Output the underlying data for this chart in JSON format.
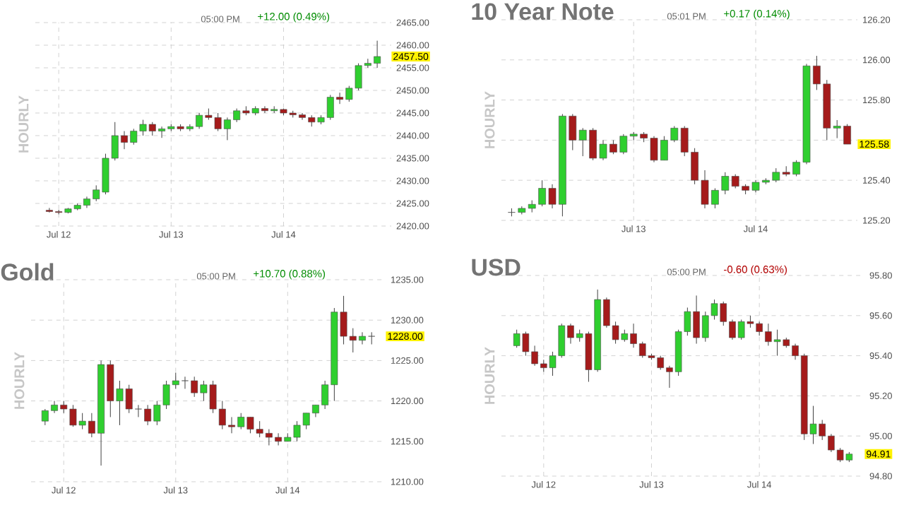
{
  "chart_data": [
    {
      "type": "candlestick",
      "ylabel": "HOURLY",
      "grid": true,
      "annotations": [
        "05:00 PM",
        "+12.00 (0.49%)",
        "2457.50"
      ],
      "ylim": [
        2420,
        2465
      ],
      "categories": [
        null,
        "Jul 12",
        null,
        null,
        null,
        null,
        null,
        null,
        null,
        null,
        null,
        null,
        null,
        "Jul 13",
        null,
        null,
        null,
        null,
        null,
        null,
        null,
        null,
        null,
        null,
        null,
        "Jul 14",
        null,
        null,
        null,
        null,
        null,
        null,
        null,
        null,
        null,
        null
      ],
      "yticks": [
        {
          "value": 2420,
          "label": "2420.00"
        },
        {
          "value": 2425,
          "label": "2425.00"
        },
        {
          "value": 2430,
          "label": "2430.00"
        },
        {
          "value": 2435,
          "label": "2435.00"
        },
        {
          "value": 2440,
          "label": "2440.00"
        },
        {
          "value": 2445,
          "label": "2445.00"
        },
        {
          "value": 2450,
          "label": "2450.00"
        },
        {
          "value": 2455,
          "label": "2455.00"
        },
        {
          "value": 2460,
          "label": "2460.00"
        },
        {
          "value": 2465,
          "label": "2465.00"
        }
      ],
      "ohlc": [
        [
          2423.5,
          2424,
          2423,
          2423.2
        ],
        [
          2423.2,
          2423.6,
          2422.6,
          2423
        ],
        [
          2423,
          2424,
          2422.8,
          2423.8
        ],
        [
          2423.8,
          2425,
          2423.5,
          2424.6
        ],
        [
          2424.6,
          2426.5,
          2424,
          2426
        ],
        [
          2426,
          2429,
          2425.5,
          2428
        ],
        [
          2427.5,
          2436,
          2427,
          2435
        ],
        [
          2435,
          2443,
          2434.5,
          2440
        ],
        [
          2440,
          2441,
          2437,
          2438.5
        ],
        [
          2438.5,
          2441.5,
          2438,
          2441
        ],
        [
          2441,
          2443.5,
          2440,
          2442.5
        ],
        [
          2442.5,
          2443,
          2440,
          2441
        ],
        [
          2441,
          2442,
          2439.5,
          2441.5
        ],
        [
          2441.5,
          2442.5,
          2441,
          2442
        ],
        [
          2442,
          2442.5,
          2441,
          2441.5
        ],
        [
          2441.5,
          2442.5,
          2441,
          2442
        ],
        [
          2442,
          2445,
          2441.5,
          2444.5
        ],
        [
          2444.5,
          2446,
          2443.5,
          2444
        ],
        [
          2444,
          2445,
          2441,
          2441.5
        ],
        [
          2441.5,
          2444,
          2439,
          2443.5
        ],
        [
          2443.5,
          2446,
          2443,
          2445.5
        ],
        [
          2445.5,
          2446.5,
          2444.5,
          2445
        ],
        [
          2445,
          2446.5,
          2444.5,
          2446
        ],
        [
          2446,
          2446.5,
          2445,
          2445.5
        ],
        [
          2445.5,
          2446.5,
          2445,
          2445.8
        ],
        [
          2445.8,
          2446,
          2444.5,
          2445
        ],
        [
          2445,
          2445.5,
          2444,
          2444.6
        ],
        [
          2444.6,
          2445,
          2443.5,
          2444
        ],
        [
          2444,
          2444.5,
          2442,
          2443
        ],
        [
          2443,
          2444.5,
          2442.5,
          2444
        ],
        [
          2444,
          2449,
          2443.5,
          2448.5
        ],
        [
          2448.5,
          2449.5,
          2447,
          2448
        ],
        [
          2448,
          2451,
          2447.5,
          2450.5
        ],
        [
          2450.5,
          2456,
          2450,
          2455.5
        ],
        [
          2455.5,
          2457,
          2455,
          2456
        ],
        [
          2456,
          2461,
          2455,
          2457.5
        ]
      ]
    },
    {
      "type": "candlestick",
      "title": "10 Year Note",
      "ylabel": "HOURLY",
      "grid": true,
      "annotations": [
        "05:01 PM",
        "+0.17 (0.14%)",
        "125.58"
      ],
      "ylim": [
        125.2,
        126.2
      ],
      "categories": [
        null,
        null,
        null,
        null,
        null,
        null,
        null,
        null,
        null,
        null,
        null,
        null,
        "Jul 13",
        null,
        null,
        null,
        null,
        null,
        null,
        null,
        null,
        null,
        null,
        null,
        "Jul 14",
        null,
        null,
        null,
        null,
        null,
        null,
        null,
        null,
        null
      ],
      "yticks": [
        {
          "value": 125.2,
          "label": "125.20"
        },
        {
          "value": 125.4,
          "label": "125.40"
        },
        {
          "value": 125.6,
          "label": null
        },
        {
          "value": 125.8,
          "label": "125.80"
        },
        {
          "value": 126.0,
          "label": "126.00"
        },
        {
          "value": 126.2,
          "label": "126.20"
        }
      ],
      "ohlc": [
        [
          125.24,
          125.26,
          125.22,
          125.24
        ],
        [
          125.24,
          125.27,
          125.23,
          125.26
        ],
        [
          125.26,
          125.3,
          125.24,
          125.28
        ],
        [
          125.28,
          125.4,
          125.27,
          125.36
        ],
        [
          125.36,
          125.38,
          125.26,
          125.28
        ],
        [
          125.28,
          125.73,
          125.22,
          125.72
        ],
        [
          125.72,
          125.73,
          125.55,
          125.6
        ],
        [
          125.6,
          125.66,
          125.52,
          125.65
        ],
        [
          125.65,
          125.66,
          125.5,
          125.51
        ],
        [
          125.51,
          125.6,
          125.5,
          125.58
        ],
        [
          125.58,
          125.6,
          125.53,
          125.54
        ],
        [
          125.54,
          125.63,
          125.53,
          125.62
        ],
        [
          125.62,
          125.64,
          125.6,
          125.63
        ],
        [
          125.63,
          125.64,
          125.59,
          125.61
        ],
        [
          125.61,
          125.62,
          125.49,
          125.5
        ],
        [
          125.5,
          125.62,
          125.5,
          125.6
        ],
        [
          125.6,
          125.67,
          125.59,
          125.66
        ],
        [
          125.66,
          125.67,
          125.52,
          125.54
        ],
        [
          125.54,
          125.56,
          125.38,
          125.4
        ],
        [
          125.4,
          125.45,
          125.26,
          125.28
        ],
        [
          125.28,
          125.36,
          125.26,
          125.35
        ],
        [
          125.35,
          125.44,
          125.33,
          125.42
        ],
        [
          125.42,
          125.43,
          125.36,
          125.37
        ],
        [
          125.37,
          125.38,
          125.33,
          125.35
        ],
        [
          125.35,
          125.4,
          125.34,
          125.39
        ],
        [
          125.39,
          125.41,
          125.38,
          125.4
        ],
        [
          125.4,
          125.46,
          125.39,
          125.44
        ],
        [
          125.44,
          125.47,
          125.42,
          125.43
        ],
        [
          125.43,
          125.5,
          125.42,
          125.49
        ],
        [
          125.49,
          125.98,
          125.48,
          125.97
        ],
        [
          125.97,
          126.02,
          125.85,
          125.88
        ],
        [
          125.88,
          125.9,
          125.6,
          125.66
        ],
        [
          125.66,
          125.7,
          125.61,
          125.67
        ],
        [
          125.67,
          125.68,
          125.58,
          125.58
        ]
      ]
    },
    {
      "type": "candlestick",
      "title": "Gold",
      "ylabel": "HOURLY",
      "grid": true,
      "annotations": [
        "05:00 PM",
        "+10.70 (0.88%)",
        "1228.00"
      ],
      "ylim": [
        1210,
        1235
      ],
      "categories": [
        null,
        null,
        "Jul 12",
        null,
        null,
        null,
        null,
        null,
        null,
        null,
        null,
        null,
        null,
        null,
        "Jul 13",
        null,
        null,
        null,
        null,
        null,
        null,
        null,
        null,
        null,
        null,
        null,
        "Jul 14",
        null,
        null,
        null,
        null,
        null,
        null,
        null,
        null,
        null
      ],
      "yticks": [
        {
          "value": 1210,
          "label": "1210.00"
        },
        {
          "value": 1215,
          "label": "1215.00"
        },
        {
          "value": 1220,
          "label": "1220.00"
        },
        {
          "value": 1225,
          "label": "1225.00"
        },
        {
          "value": 1230,
          "label": "1230.00"
        },
        {
          "value": 1235,
          "label": "1235.00"
        }
      ],
      "ohlc": [
        [
          1217.5,
          1219,
          1217,
          1218.8
        ],
        [
          1218.8,
          1220,
          1218.5,
          1219.5
        ],
        [
          1219.5,
          1220,
          1218.5,
          1219
        ],
        [
          1219,
          1219.5,
          1216.8,
          1217
        ],
        [
          1217,
          1218.5,
          1216.5,
          1217.5
        ],
        [
          1217.5,
          1218.5,
          1215.5,
          1216
        ],
        [
          1216,
          1225,
          1212,
          1224.5
        ],
        [
          1224.5,
          1225,
          1218,
          1220
        ],
        [
          1220,
          1222.5,
          1217,
          1221.5
        ],
        [
          1221.5,
          1222,
          1218.5,
          1219
        ],
        [
          1219,
          1219.5,
          1218,
          1219
        ],
        [
          1219,
          1219.5,
          1217,
          1217.5
        ],
        [
          1217.5,
          1220,
          1217,
          1219.5
        ],
        [
          1219.5,
          1222.5,
          1219,
          1222
        ],
        [
          1222,
          1223.5,
          1221.5,
          1222.5
        ],
        [
          1222.5,
          1223,
          1221.5,
          1222.5
        ],
        [
          1222.5,
          1223,
          1220.5,
          1221
        ],
        [
          1221,
          1222.5,
          1220,
          1222
        ],
        [
          1222,
          1222.5,
          1218.5,
          1219
        ],
        [
          1219,
          1220,
          1216.5,
          1217
        ],
        [
          1217,
          1218,
          1216,
          1216.8
        ],
        [
          1216.8,
          1218.5,
          1216.5,
          1218
        ],
        [
          1218,
          1218,
          1216,
          1216.5
        ],
        [
          1216.5,
          1217.5,
          1215.5,
          1216
        ],
        [
          1216,
          1216.5,
          1214.5,
          1215.5
        ],
        [
          1215.5,
          1216,
          1214.5,
          1215
        ],
        [
          1215,
          1216,
          1215,
          1215.5
        ],
        [
          1215.5,
          1217.5,
          1215,
          1217
        ],
        [
          1217,
          1218.5,
          1216.5,
          1218.5
        ],
        [
          1218.5,
          1219.5,
          1218,
          1219.5
        ],
        [
          1219.5,
          1222.5,
          1219,
          1222
        ],
        [
          1222,
          1231.5,
          1220,
          1231
        ],
        [
          1231,
          1233,
          1227,
          1228
        ],
        [
          1228,
          1229,
          1226,
          1227.5
        ],
        [
          1227.5,
          1228.5,
          1227,
          1228
        ],
        [
          1228,
          1228.5,
          1227,
          1228
        ]
      ]
    },
    {
      "type": "candlestick",
      "title": "USD",
      "ylabel": "HOURLY",
      "grid": true,
      "annotations": [
        "05:00 PM",
        "-0.60 (0.63%)",
        "94.91"
      ],
      "ylim": [
        94.8,
        95.8
      ],
      "categories": [
        null,
        null,
        null,
        "Jul 12",
        null,
        null,
        null,
        null,
        null,
        null,
        null,
        null,
        null,
        null,
        null,
        "Jul 13",
        null,
        null,
        null,
        null,
        null,
        null,
        null,
        null,
        null,
        null,
        null,
        "Jul 14",
        null,
        null,
        null,
        null,
        null,
        null,
        null,
        null,
        null,
        null
      ],
      "yticks": [
        {
          "value": 94.8,
          "label": "94.80"
        },
        {
          "value": 95.0,
          "label": "95.00"
        },
        {
          "value": 95.2,
          "label": "95.20"
        },
        {
          "value": 95.4,
          "label": "95.40"
        },
        {
          "value": 95.6,
          "label": "95.60"
        },
        {
          "value": 95.8,
          "label": "95.80"
        }
      ],
      "ohlc": [
        [
          95.45,
          95.53,
          95.44,
          95.51
        ],
        [
          95.51,
          95.52,
          95.4,
          95.42
        ],
        [
          95.42,
          95.45,
          95.35,
          95.36
        ],
        [
          95.36,
          95.38,
          95.32,
          95.34
        ],
        [
          95.34,
          95.42,
          95.3,
          95.4
        ],
        [
          95.4,
          95.56,
          95.39,
          95.55
        ],
        [
          95.55,
          95.56,
          95.46,
          95.49
        ],
        [
          95.49,
          95.53,
          95.47,
          95.51
        ],
        [
          95.51,
          95.52,
          95.27,
          95.33
        ],
        [
          95.33,
          95.73,
          95.32,
          95.68
        ],
        [
          95.68,
          95.69,
          95.54,
          95.55
        ],
        [
          95.55,
          95.57,
          95.46,
          95.48
        ],
        [
          95.48,
          95.53,
          95.47,
          95.51
        ],
        [
          95.51,
          95.56,
          95.44,
          95.46
        ],
        [
          95.46,
          95.47,
          95.39,
          95.4
        ],
        [
          95.4,
          95.41,
          95.38,
          95.39
        ],
        [
          95.39,
          95.4,
          95.33,
          95.34
        ],
        [
          95.34,
          95.35,
          95.24,
          95.32
        ],
        [
          95.32,
          95.53,
          95.3,
          95.52
        ],
        [
          95.52,
          95.64,
          95.5,
          95.62
        ],
        [
          95.62,
          95.7,
          95.46,
          95.49
        ],
        [
          95.49,
          95.62,
          95.47,
          95.6
        ],
        [
          95.6,
          95.68,
          95.58,
          95.66
        ],
        [
          95.66,
          95.67,
          95.55,
          95.57
        ],
        [
          95.57,
          95.58,
          95.48,
          95.49
        ],
        [
          95.49,
          95.58,
          95.48,
          95.57
        ],
        [
          95.57,
          95.6,
          95.54,
          95.56
        ],
        [
          95.56,
          95.57,
          95.5,
          95.52
        ],
        [
          95.52,
          95.56,
          95.45,
          95.47
        ],
        [
          95.47,
          95.53,
          95.4,
          95.48
        ],
        [
          95.48,
          95.49,
          95.44,
          95.45
        ],
        [
          95.45,
          95.46,
          95.38,
          95.4
        ],
        [
          95.4,
          95.41,
          94.98,
          95.01
        ],
        [
          95.01,
          95.15,
          94.96,
          95.06
        ],
        [
          95.06,
          95.08,
          94.98,
          95.0
        ],
        [
          95.0,
          95.01,
          94.92,
          94.93
        ],
        [
          94.93,
          94.94,
          94.87,
          94.88
        ],
        [
          94.88,
          94.92,
          94.87,
          94.91
        ]
      ]
    }
  ]
}
